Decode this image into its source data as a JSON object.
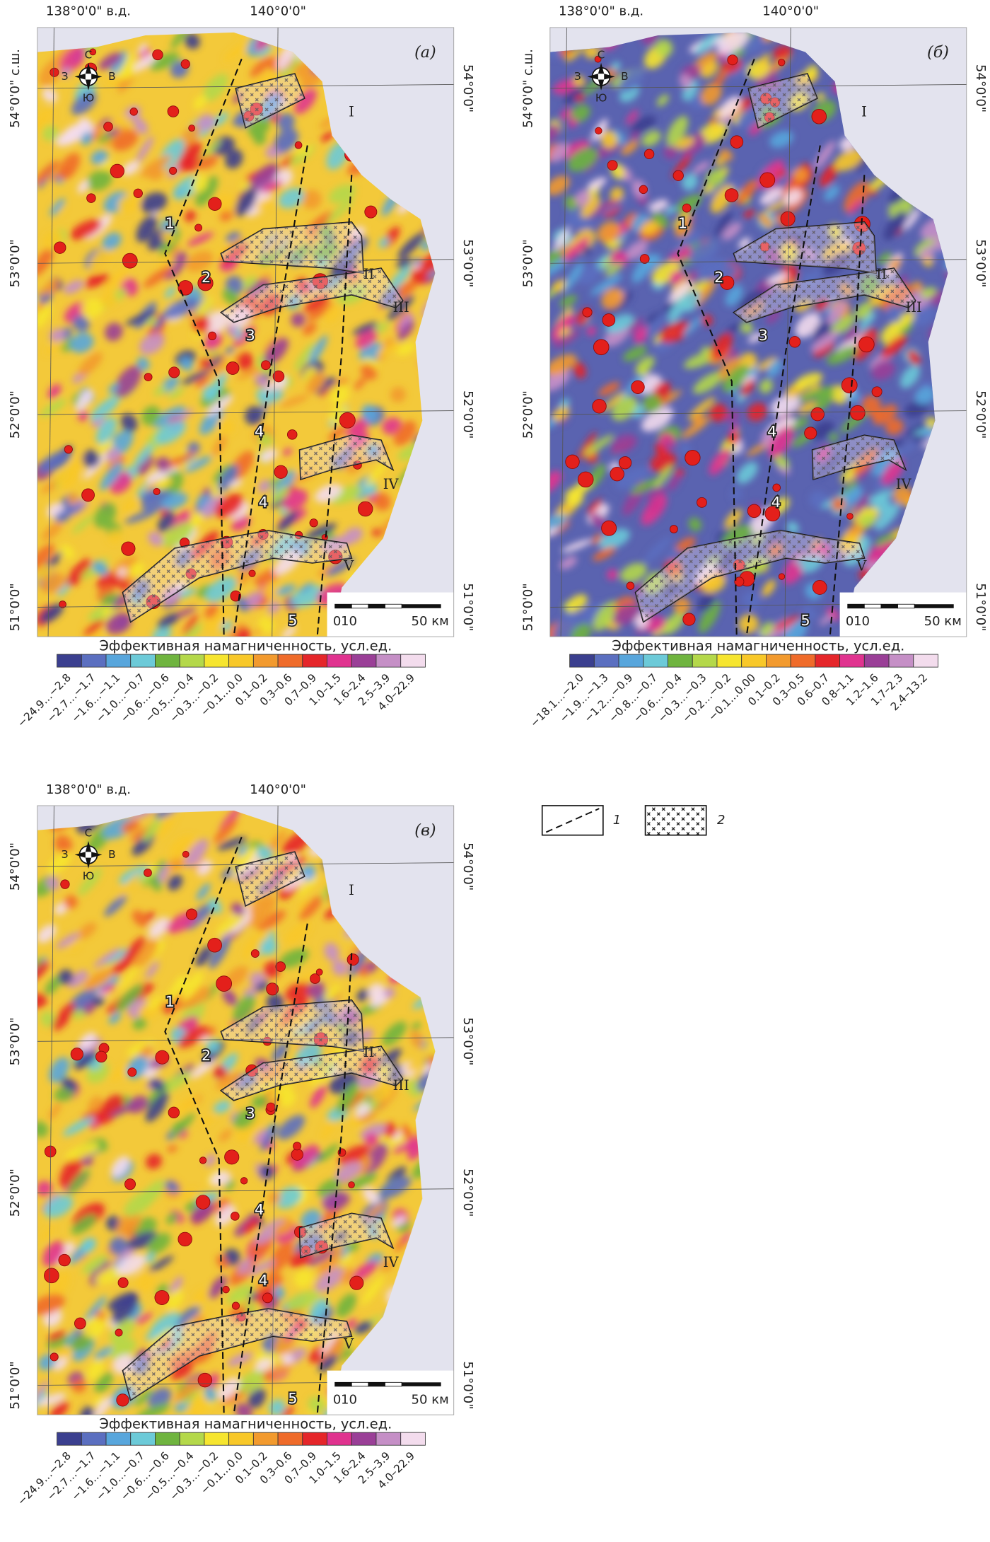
{
  "panels": [
    {
      "letter": "(а)",
      "lon_labels": [
        "138°0'0\" в.д.",
        "140°0'0\""
      ],
      "lat_labels_left": [
        "54°0'0\" с.ш.",
        "53°0'0\"",
        "52°0'0\"",
        "51°0'0\""
      ],
      "lat_labels_right": [
        "54°0'0\"",
        "53°0'0\"",
        "52°0'0\"",
        "51°0'0\""
      ],
      "compass": [
        "С",
        "З",
        "В",
        "Ю"
      ],
      "zones": [
        "I",
        "II",
        "III",
        "IV",
        "V"
      ],
      "lines": [
        "1",
        "2",
        "3",
        "4",
        "4",
        "5"
      ],
      "scale": [
        "0",
        "10",
        "50 км"
      ],
      "legend_title": "Эффективная намагниченность, усл.ед.",
      "classes": [
        "−24.9…−2.8",
        "−2.7…−1.7",
        "−1.6…−1.1",
        "−1.0…−0.7",
        "−0.6…−0.6",
        "−0.5…−0.4",
        "−0.3…−0.2",
        "−0.1…0.0",
        "0.1–0.2",
        "0.3–0.6",
        "0.7–0.9",
        "1.0–1.5",
        "1.6–2.4",
        "2.5–3.9",
        "4.0–22.9"
      ]
    },
    {
      "letter": "(б)",
      "lon_labels": [
        "138°0'0\" в.д.",
        "140°0'0\""
      ],
      "lat_labels_left": [
        "54°0'0\" с.ш.",
        "53°0'0\"",
        "52°0'0\"",
        "51°0'0\""
      ],
      "lat_labels_right": [
        "54°0'0\"",
        "53°0'0\"",
        "52°0'0\"",
        "51°0'0\""
      ],
      "compass": [
        "С",
        "З",
        "В",
        "Ю"
      ],
      "zones": [
        "I",
        "II",
        "III",
        "IV",
        "V"
      ],
      "lines": [
        "1",
        "2",
        "3",
        "4",
        "4",
        "5"
      ],
      "scale": [
        "0",
        "10",
        "50 км"
      ],
      "legend_title": "Эффективная намагниченность, усл.ед.",
      "classes": [
        "−18.1…−2.0",
        "−1.9…−1.3",
        "−1.2…−0.9",
        "−0.8…−0.7",
        "−0.6…−0.4",
        "−0.3…−0.3",
        "−0.2…−0.2",
        "−0.1…0.00",
        "0.1–0.2",
        "0.3–0.5",
        "0.6–0.7",
        "0.8–1.1",
        "1.2–1.6",
        "1.7–2.3",
        "2.4–13.2"
      ]
    },
    {
      "letter": "(в)",
      "lon_labels": [
        "138°0'0\" в.д.",
        "140°0'0\""
      ],
      "lat_labels_left": [
        "54°0'0\"",
        "53°0'0\"",
        "52°0'0\"",
        "51°0'0\""
      ],
      "lat_labels_right": [
        "54°0'0\"",
        "53°0'0\"",
        "52°0'0\"",
        "51°0'0\""
      ],
      "compass": [
        "С",
        "З",
        "В",
        "Ю"
      ],
      "zones": [
        "I",
        "II",
        "III",
        "IV",
        "V"
      ],
      "lines": [
        "1",
        "2",
        "3",
        "4",
        "4",
        "5"
      ],
      "scale": [
        "0",
        "10",
        "50 км"
      ],
      "legend_title": "Эффективная намагниченность, усл.ед.",
      "classes": [
        "−24.9…−2.8",
        "−2.7…−1.7",
        "−1.6…−1.1",
        "−1.0…−0.7",
        "−0.6…−0.6",
        "−0.5…−0.4",
        "−0.3…−0.2",
        "−0.1…0.0",
        "0.1–0.2",
        "0.3–0.6",
        "0.7–0.9",
        "1.0–1.5",
        "1.6–2.4",
        "2.5–3.9",
        "4.0–22.9"
      ]
    }
  ],
  "key": [
    "1",
    "2"
  ]
}
